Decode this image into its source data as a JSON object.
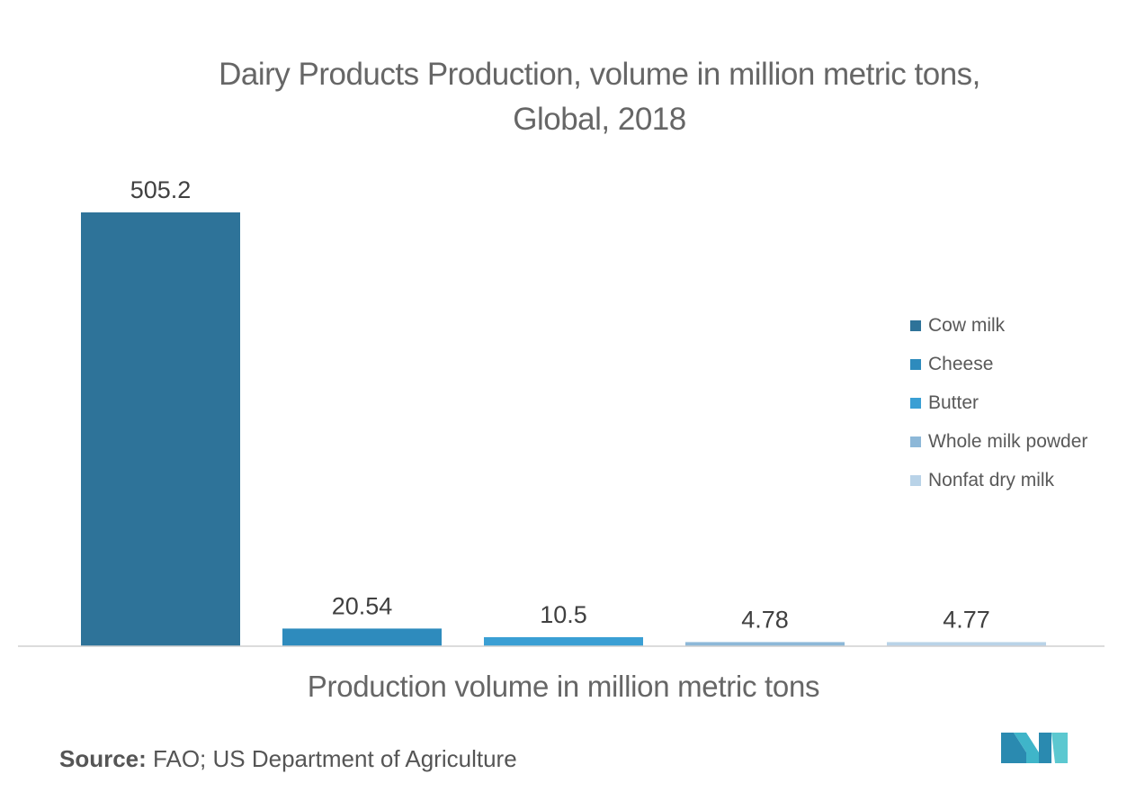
{
  "chart_data": {
    "type": "bar",
    "title": [
      "Dairy Products Production, volume in million metric tons,",
      "Global, 2018"
    ],
    "xlabel": "Production volume in million metric tons",
    "categories": [
      "Cow milk",
      "Cheese",
      "Butter",
      "Whole milk powder",
      "Nonfat dry milk"
    ],
    "values": [
      505.2,
      20.54,
      10.5,
      4.78,
      4.77
    ],
    "value_labels": [
      "505.2",
      "20.54",
      "10.5",
      "4.78",
      "4.77"
    ],
    "colors": [
      "#2e7399",
      "#2e8bbd",
      "#3a9fd4",
      "#8db8d8",
      "#b9d3e8"
    ],
    "ylim": [
      0,
      505.2
    ],
    "legend_position": "right",
    "grid": false
  },
  "source": {
    "label": "Source:",
    "text": " FAO; US Department of Agriculture"
  }
}
